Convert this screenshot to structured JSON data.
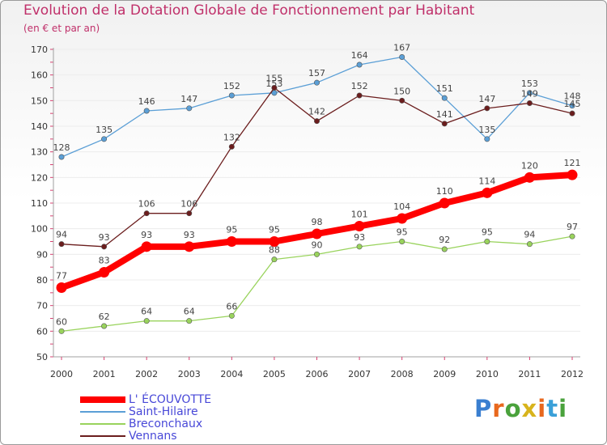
{
  "header": {
    "title": "Evolution de la Dotation Globale de Fonctionnement par Habitant",
    "subtitle": "(en € et par an)"
  },
  "logo": {
    "text": "Proxiti",
    "letter_colors": [
      "#3a7fd0",
      "#e8681e",
      "#4aa23c",
      "#d8b41c",
      "#e8681e",
      "#3aa0d8",
      "#4aa23c"
    ]
  },
  "colors": {
    "title": "#c0306a",
    "axis": "#a0a0a0",
    "grid": "#ececec",
    "tick_label": "#333333",
    "data_label": "#444444",
    "legend_text": "#4848d8"
  },
  "chart_data": {
    "type": "line",
    "title": "Evolution de la Dotation Globale de Fonctionnement par Habitant",
    "subtitle": "(en € et par an)",
    "xlabel": "",
    "ylabel": "",
    "categories": [
      "2000",
      "2001",
      "2002",
      "2003",
      "2004",
      "2005",
      "2006",
      "2007",
      "2008",
      "2009",
      "2010",
      "2011",
      "2012"
    ],
    "ylim": [
      50,
      170
    ],
    "yticks": [
      50,
      60,
      70,
      80,
      90,
      100,
      110,
      120,
      130,
      140,
      150,
      160,
      170
    ],
    "grid": true,
    "legend_position": "bottom-left",
    "series": [
      {
        "name": "Saint-Hilaire",
        "color": "#5b9fd6",
        "emphasis": false,
        "values": [
          128,
          135,
          146,
          147,
          152,
          153,
          157,
          164,
          167,
          151,
          135,
          153,
          148
        ],
        "labels": [
          "128",
          "135",
          "146",
          "147",
          "152",
          "153",
          "157",
          "164",
          "167",
          "151",
          "135",
          "153",
          "148"
        ]
      },
      {
        "name": "Vennans",
        "color": "#6b1d1d",
        "emphasis": false,
        "values": [
          94,
          93,
          106,
          106,
          132,
          155,
          142,
          152,
          150,
          141,
          147,
          149,
          145
        ],
        "labels": [
          "94",
          "93",
          "106",
          "106",
          "132",
          "155",
          "142",
          "152",
          "150",
          "141",
          "147",
          "149",
          "145"
        ]
      },
      {
        "name": "Breconchaux",
        "color": "#99d35c",
        "emphasis": false,
        "values": [
          60,
          62,
          64,
          64,
          66,
          88,
          90,
          93,
          95,
          92,
          95,
          94,
          97
        ],
        "labels": [
          "60",
          "62",
          "64",
          "64",
          "66",
          "88",
          "90",
          "93",
          "95",
          "92",
          "95",
          "94",
          "97"
        ]
      },
      {
        "name": "L' ÉCOUVOTTE",
        "color": "#ff0000",
        "emphasis": true,
        "values": [
          77,
          83,
          93,
          93,
          95,
          95,
          98,
          101,
          104,
          110,
          114,
          120,
          121
        ],
        "labels": [
          "77",
          "83",
          "93",
          "93",
          "95",
          "95",
          "98",
          "101",
          "104",
          "110",
          "114",
          "120",
          "121"
        ]
      }
    ],
    "legend_order": [
      "L' ÉCOUVOTTE",
      "Saint-Hilaire",
      "Breconchaux",
      "Vennans"
    ]
  }
}
